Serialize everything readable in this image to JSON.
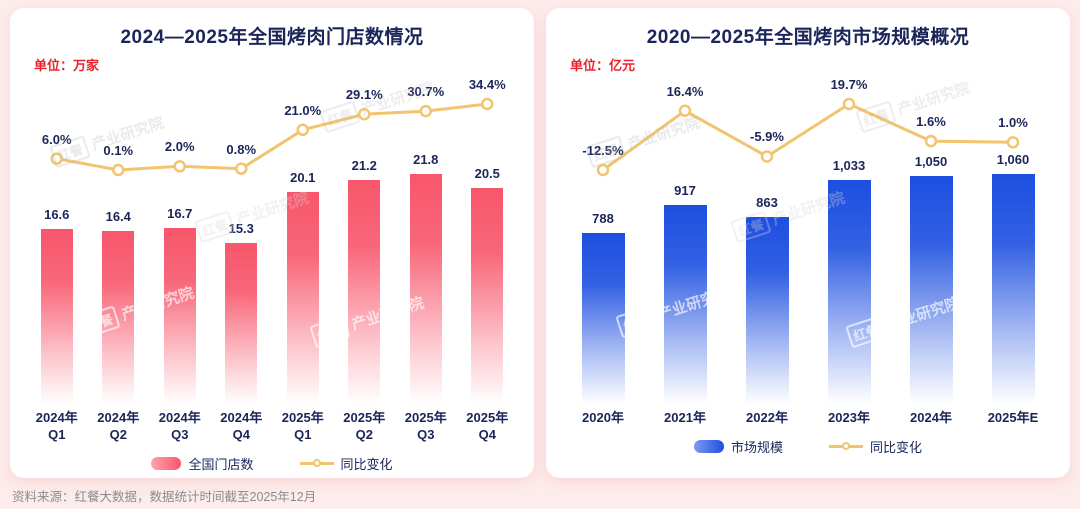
{
  "source_note": "资料来源：红餐大数据，数据统计时间截至2025年12月",
  "watermark": {
    "logo": "红餐",
    "text": "产业研究院"
  },
  "chart_data": [
    {
      "type": "bar+line",
      "title": "2024—2025年全国烤肉门店数情况",
      "unit_label": "单位：万家",
      "categories": [
        "2024年\nQ1",
        "2024年\nQ2",
        "2024年\nQ3",
        "2024年\nQ4",
        "2025年\nQ1",
        "2025年\nQ2",
        "2025年\nQ3",
        "2025年\nQ4"
      ],
      "bar_value_labels": [
        "16.6",
        "16.4",
        "16.7",
        "15.3",
        "20.1",
        "21.2",
        "21.8",
        "20.5"
      ],
      "series": [
        {
          "name": "全国门店数",
          "type": "bar",
          "values": [
            16.6,
            16.4,
            16.7,
            15.3,
            20.1,
            21.2,
            21.8,
            20.5
          ],
          "color": "#f8566b",
          "color_light": "#fca4af"
        },
        {
          "name": "同比变化",
          "type": "line",
          "values": [
            6.0,
            0.1,
            2.0,
            0.8,
            21.0,
            29.1,
            30.7,
            34.4
          ],
          "labels": [
            "6.0%",
            "0.1%",
            "2.0%",
            "0.8%",
            "21.0%",
            "29.1%",
            "30.7%",
            "34.4%"
          ],
          "color": "#f2c46e"
        }
      ],
      "grid": false,
      "legend_position": "bottom"
    },
    {
      "type": "bar+line",
      "title": "2020—2025年全国烤肉市场规模概况",
      "unit_label": "单位：亿元",
      "categories": [
        "2020年",
        "2021年",
        "2022年",
        "2023年",
        "2024年",
        "2025年E"
      ],
      "bar_value_labels": [
        "788",
        "917",
        "863",
        "1,033",
        "1,050",
        "1,060"
      ],
      "series": [
        {
          "name": "市场规模",
          "type": "bar",
          "values": [
            788,
            917,
            863,
            1033,
            1050,
            1060
          ],
          "color": "#1d4fe0",
          "color_light": "#7d9af0"
        },
        {
          "name": "同比变化",
          "type": "line",
          "values": [
            -12.5,
            16.4,
            -5.9,
            19.7,
            1.6,
            1.0
          ],
          "labels": [
            "-12.5%",
            "16.4%",
            "-5.9%",
            "19.7%",
            "1.6%",
            "1.0%"
          ],
          "color": "#f2c46e"
        }
      ],
      "grid": false,
      "legend_position": "bottom"
    }
  ]
}
